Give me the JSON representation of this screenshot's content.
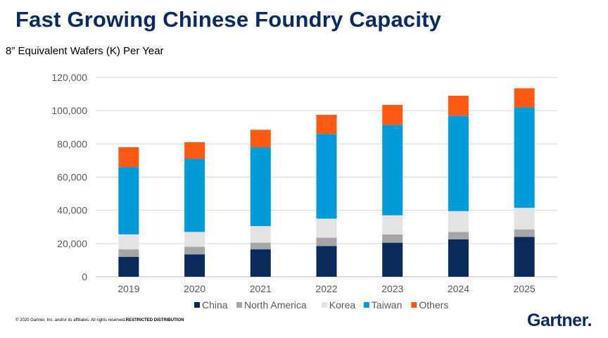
{
  "header": {
    "title": "Fast Growing Chinese Foundry Capacity"
  },
  "chart_data": {
    "type": "bar",
    "stacked": true,
    "title": "",
    "subtitle": "8” Equivalent Wafers (K) Per Year",
    "xlabel": "",
    "ylabel": "",
    "categories": [
      "2019",
      "2020",
      "2021",
      "2022",
      "2023",
      "2024",
      "2025"
    ],
    "ylim": [
      0,
      120000
    ],
    "yticks": [
      0,
      20000,
      40000,
      60000,
      80000,
      100000,
      120000
    ],
    "ytick_labels": [
      "0",
      "20,000",
      "40,000",
      "60,000",
      "80,000",
      "100,000",
      "120,000"
    ],
    "grid": true,
    "legend_position": "bottom",
    "series": [
      {
        "name": "China",
        "color": "#0a2a5c",
        "values": [
          12000,
          13500,
          16500,
          18500,
          20500,
          22500,
          24000
        ]
      },
      {
        "name": "North America",
        "color": "#a6a6a6",
        "values": [
          4500,
          4500,
          4000,
          5000,
          5000,
          4500,
          4500
        ]
      },
      {
        "name": "Korea",
        "color": "#e3e3e3",
        "values": [
          9000,
          9000,
          10000,
          11500,
          11500,
          12500,
          13000
        ]
      },
      {
        "name": "Taiwan",
        "color": "#009bd8",
        "values": [
          40500,
          44000,
          47500,
          51000,
          54500,
          57500,
          60500
        ]
      },
      {
        "name": "Others",
        "color": "#ff5a14",
        "values": [
          12000,
          10000,
          10500,
          11500,
          12000,
          12000,
          11500
        ]
      }
    ]
  },
  "footer": {
    "copyright": "© 2020 Gartner, Inc. and/or its affiliates. All rights reserved.",
    "restricted": "RESTRICTED DISTRIBUTION"
  },
  "logo": {
    "text": "Gartner",
    "dot": "."
  }
}
